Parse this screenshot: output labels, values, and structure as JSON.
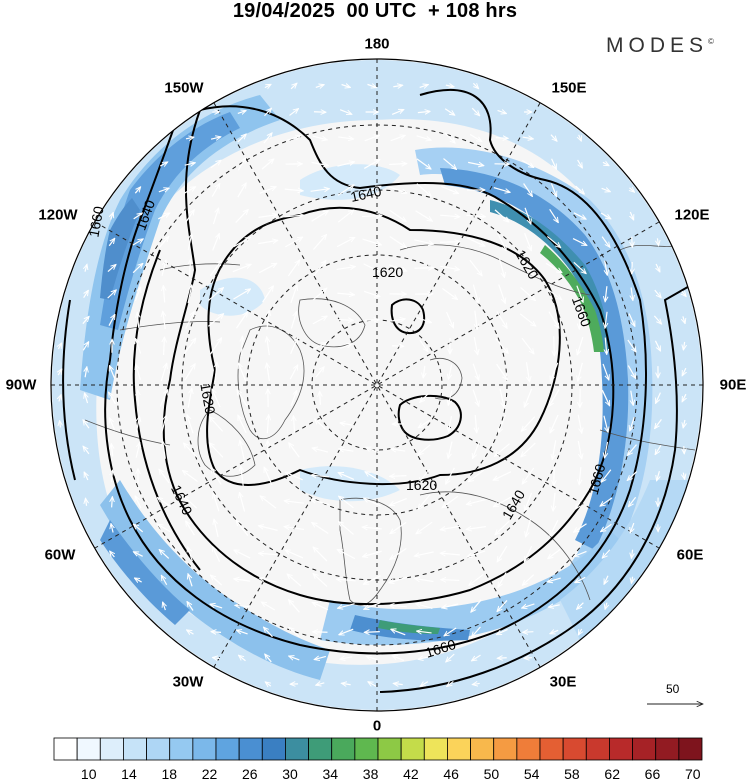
{
  "title": "19/04/2025  00 UTC  + 108 hrs",
  "brand": {
    "name": "MODES",
    "mark": "©"
  },
  "longitude_labels": {
    "top": "180",
    "bottom": "0",
    "left": "90W",
    "right": "90E",
    "upper_left_1": "150W",
    "upper_left_2": "120W",
    "upper_right_1": "150E",
    "upper_right_2": "120E",
    "lower_left_1": "60W",
    "lower_left_2": "30W",
    "lower_right_1": "60E",
    "lower_right_2": "30E"
  },
  "contour_labels": [
    "1640",
    "1620",
    "1620",
    "1620",
    "1620",
    "1640",
    "1640",
    "1640",
    "1660",
    "1660",
    "1660",
    "1660"
  ],
  "vector_scale": {
    "value": "50"
  },
  "colorbar": {
    "labels": [
      "10",
      "14",
      "18",
      "22",
      "26",
      "30",
      "34",
      "38",
      "42",
      "46",
      "50",
      "54",
      "58",
      "62",
      "66",
      "70"
    ],
    "colors": [
      "#ffffff",
      "#f0f8ff",
      "#ddeefb",
      "#c6e3f8",
      "#aed6f5",
      "#95c9f1",
      "#7bb8ea",
      "#5fa4e0",
      "#4a8fd2",
      "#3a7fc2",
      "#3c8ea0",
      "#3e9c78",
      "#4aa95c",
      "#5fb84f",
      "#8dc945",
      "#c4dc4a",
      "#eee45a",
      "#fbd35a",
      "#f8b84c",
      "#f59b42",
      "#ef7d39",
      "#e45f33",
      "#d84a30",
      "#c9392d",
      "#b82a2a",
      "#a62226",
      "#921b22",
      "#7e141d"
    ]
  }
}
